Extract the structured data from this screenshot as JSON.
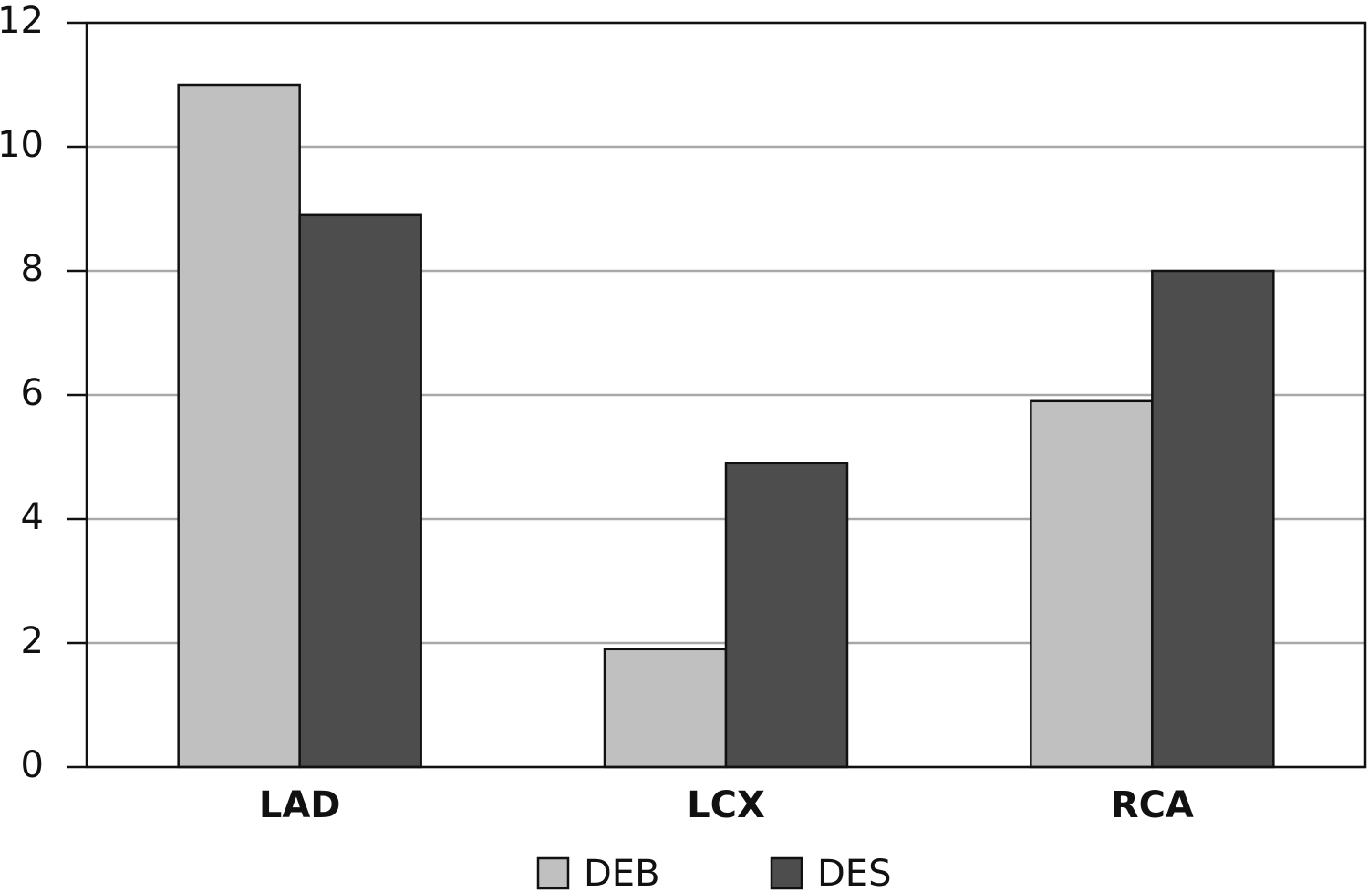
{
  "chart_data": {
    "type": "bar",
    "categories": [
      "LAD",
      "LCX",
      "RCA"
    ],
    "series": [
      {
        "name": "DEB",
        "color": "#c0c0c0",
        "values": [
          11,
          1.9,
          5.9
        ]
      },
      {
        "name": "DES",
        "color": "#4d4d4d",
        "values": [
          8.9,
          4.9,
          8
        ]
      }
    ],
    "ylim": [
      0,
      12
    ],
    "yticks": [
      0,
      2,
      4,
      6,
      8,
      10,
      12
    ],
    "grid": true,
    "legend": "bottom"
  }
}
